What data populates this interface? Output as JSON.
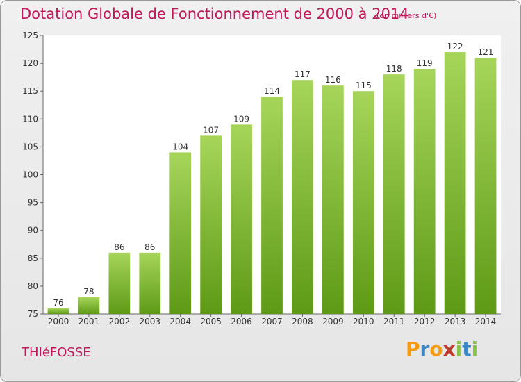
{
  "title": "Dotation Globale de Fonctionnement de 2000 à 2014",
  "subtitle": "(en milliers d'€)",
  "commune": "THIéFOSSE",
  "logo": {
    "letters": [
      "P",
      "r",
      "o",
      "x",
      "i",
      "t",
      "i"
    ],
    "colors": [
      "#f39c12",
      "#3a87c8",
      "#f39c12",
      "#c0392b",
      "#8bc34a",
      "#3a87c8",
      "#8bc34a"
    ]
  },
  "colors": {
    "bar_top": "#a6d55a",
    "bar_bottom": "#5e9a16",
    "title": "#c2185b"
  },
  "chart_data": {
    "type": "bar",
    "categories": [
      "2000",
      "2001",
      "2002",
      "2003",
      "2004",
      "2005",
      "2006",
      "2007",
      "2008",
      "2009",
      "2010",
      "2011",
      "2012",
      "2013",
      "2014"
    ],
    "values": [
      76,
      78,
      86,
      86,
      104,
      107,
      109,
      114,
      117,
      116,
      115,
      118,
      119,
      122,
      121
    ],
    "title": "Dotation Globale de Fonctionnement de 2000 à 2014",
    "xlabel": "",
    "ylabel": "",
    "ylim": [
      75,
      125
    ],
    "yticks": [
      75,
      80,
      85,
      90,
      95,
      100,
      105,
      110,
      115,
      120,
      125
    ],
    "grid": false,
    "data_labels": true
  }
}
